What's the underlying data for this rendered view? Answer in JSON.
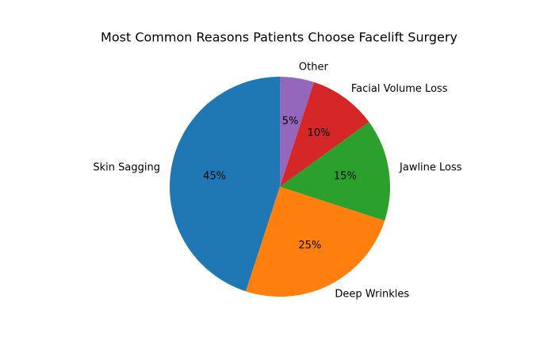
{
  "chart_data": {
    "type": "pie",
    "title": "Most Common Reasons Patients Choose Facelift Surgery",
    "categories": [
      "Skin Sagging",
      "Deep Wrinkles",
      "Jawline Loss",
      "Facial Volume Loss",
      "Other"
    ],
    "values": [
      45,
      25,
      15,
      10,
      5
    ],
    "value_labels": [
      "45%",
      "25%",
      "15%",
      "10%",
      "5%"
    ],
    "colors": [
      "#1f77b4",
      "#ff7f0e",
      "#2ca02c",
      "#d62728",
      "#9467bd"
    ]
  }
}
